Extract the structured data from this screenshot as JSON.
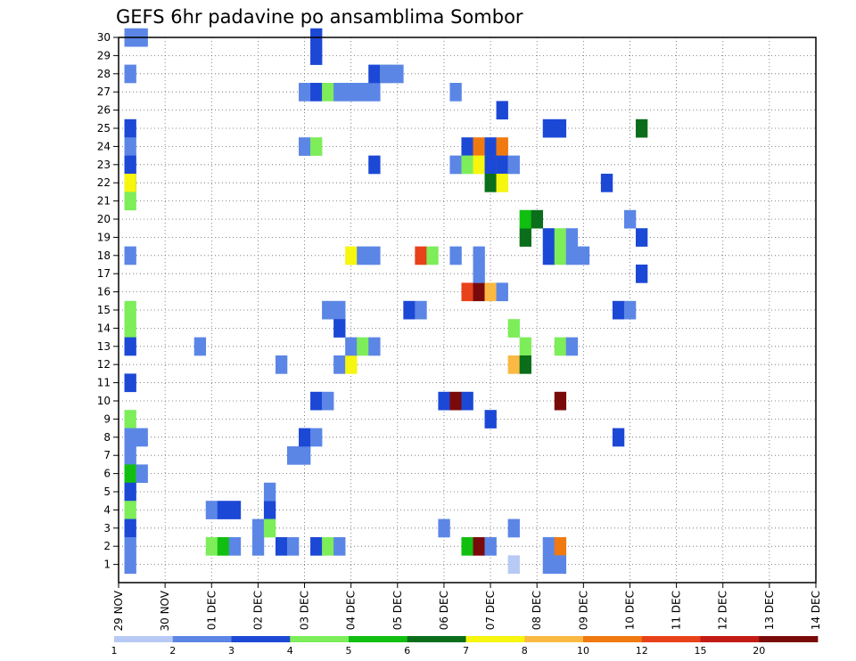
{
  "chart_data": {
    "type": "heatmap",
    "title": "GEFS 6hr padavine po ansamblima Sombor",
    "xlabel": "",
    "ylabel": "",
    "x_ticks": [
      "29 NOV",
      "30 NOV",
      "01 DEC",
      "02 DEC",
      "03 DEC",
      "04 DEC",
      "05 DEC",
      "06 DEC",
      "07 DEC",
      "08 DEC",
      "09 DEC",
      "10 DEC",
      "11 DEC",
      "12 DEC",
      "13 DEC",
      "14 DEC"
    ],
    "x_range": [
      0,
      60
    ],
    "y_ticks": [
      "1",
      "2",
      "3",
      "4",
      "5",
      "6",
      "7",
      "8",
      "9",
      "10",
      "11",
      "12",
      "13",
      "14",
      "15",
      "16",
      "17",
      "18",
      "19",
      "20",
      "21",
      "22",
      "23",
      "24",
      "25",
      "26",
      "27",
      "28",
      "29",
      "30"
    ],
    "y_range": [
      0,
      30
    ],
    "grid": true,
    "x_unit": "6-hour step",
    "y_unit": "ensemble member",
    "levels": [
      "1",
      "2",
      "3",
      "4",
      "5",
      "6",
      "7",
      "8",
      "10",
      "12",
      "15",
      "20"
    ],
    "colors": [
      "#b7c9f5",
      "#5b86e6",
      "#1c48d6",
      "#7ded5a",
      "#10bf10",
      "#0a6e1b",
      "#f6f60e",
      "#fbb943",
      "#f07a10",
      "#e8421a",
      "#c21b14",
      "#7a0a0a"
    ],
    "cells": [
      [
        1,
        1,
        30
      ],
      [
        1,
        2,
        22
      ],
      [
        1,
        1,
        28
      ],
      [
        1,
        2,
        25
      ],
      [
        1,
        1,
        24
      ],
      [
        1,
        2,
        23
      ],
      [
        1,
        6,
        22
      ],
      [
        1,
        3,
        21
      ],
      [
        1,
        1,
        18
      ],
      [
        1,
        3,
        15
      ],
      [
        1,
        3,
        14
      ],
      [
        1,
        2,
        13
      ],
      [
        1,
        2,
        11
      ],
      [
        1,
        3,
        9
      ],
      [
        1,
        1,
        8
      ],
      [
        1,
        1,
        7
      ],
      [
        1,
        4,
        6
      ],
      [
        1,
        2,
        5
      ],
      [
        1,
        3,
        4
      ],
      [
        1,
        2,
        3
      ],
      [
        1,
        1,
        2
      ],
      [
        1,
        1,
        1
      ],
      [
        2,
        1,
        30
      ],
      [
        2,
        1,
        8
      ],
      [
        2,
        1,
        6
      ],
      [
        7,
        1,
        13
      ],
      [
        8,
        3,
        2
      ],
      [
        8,
        1,
        4
      ],
      [
        9,
        4,
        2
      ],
      [
        9,
        2,
        4
      ],
      [
        10,
        1,
        2
      ],
      [
        10,
        2,
        4
      ],
      [
        12,
        1,
        3
      ],
      [
        12,
        1,
        2
      ],
      [
        13,
        2,
        4
      ],
      [
        13,
        3,
        3
      ],
      [
        13,
        1,
        5
      ],
      [
        14,
        2,
        2
      ],
      [
        14,
        1,
        12
      ],
      [
        15,
        1,
        2
      ],
      [
        15,
        1,
        7
      ],
      [
        16,
        1,
        7
      ],
      [
        16,
        2,
        8
      ],
      [
        17,
        1,
        8
      ],
      [
        16,
        1,
        27
      ],
      [
        16,
        1,
        24
      ],
      [
        17,
        2,
        10
      ],
      [
        17,
        2,
        27
      ],
      [
        17,
        3,
        24
      ],
      [
        17,
        2,
        29
      ],
      [
        17,
        2,
        30
      ],
      [
        17,
        2,
        2
      ],
      [
        18,
        1,
        10
      ],
      [
        18,
        3,
        27
      ],
      [
        18,
        3,
        2
      ],
      [
        18,
        1,
        15
      ],
      [
        19,
        1,
        15
      ],
      [
        19,
        2,
        14
      ],
      [
        19,
        1,
        2
      ],
      [
        19,
        1,
        12
      ],
      [
        19,
        1,
        27
      ],
      [
        20,
        6,
        18
      ],
      [
        20,
        6,
        12
      ],
      [
        20,
        1,
        13
      ],
      [
        20,
        1,
        27
      ],
      [
        21,
        1,
        18
      ],
      [
        21,
        3,
        13
      ],
      [
        21,
        1,
        27
      ],
      [
        22,
        1,
        18
      ],
      [
        22,
        1,
        13
      ],
      [
        22,
        1,
        27
      ],
      [
        22,
        2,
        23
      ],
      [
        22,
        2,
        28
      ],
      [
        23,
        3,
        28
      ],
      [
        23,
        1,
        28
      ],
      [
        24,
        1,
        28
      ],
      [
        26,
        9,
        18
      ],
      [
        27,
        3,
        18
      ],
      [
        25,
        2,
        15
      ],
      [
        26,
        1,
        15
      ],
      [
        28,
        1,
        3
      ],
      [
        28,
        2,
        10
      ],
      [
        29,
        11,
        10
      ],
      [
        29,
        1,
        27
      ],
      [
        29,
        1,
        18
      ],
      [
        29,
        1,
        23
      ],
      [
        30,
        9,
        16
      ],
      [
        30,
        2,
        24
      ],
      [
        30,
        3,
        23
      ],
      [
        30,
        4,
        2
      ],
      [
        30,
        2,
        10
      ],
      [
        31,
        11,
        16
      ],
      [
        31,
        8,
        24
      ],
      [
        31,
        6,
        23
      ],
      [
        31,
        11,
        2
      ],
      [
        31,
        1,
        17
      ],
      [
        31,
        1,
        18
      ],
      [
        32,
        7,
        16
      ],
      [
        32,
        2,
        24
      ],
      [
        32,
        2,
        23
      ],
      [
        32,
        5,
        22
      ],
      [
        32,
        1,
        2
      ],
      [
        32,
        2,
        9
      ],
      [
        33,
        1,
        16
      ],
      [
        33,
        8,
        24
      ],
      [
        33,
        2,
        23
      ],
      [
        33,
        6,
        22
      ],
      [
        33,
        2,
        26
      ],
      [
        34,
        3,
        14
      ],
      [
        34,
        7,
        12
      ],
      [
        34,
        1,
        23
      ],
      [
        34,
        1,
        3
      ],
      [
        34,
        0,
        1
      ],
      [
        35,
        3,
        13
      ],
      [
        35,
        5,
        12
      ],
      [
        35,
        5,
        19
      ],
      [
        35,
        4,
        20
      ],
      [
        36,
        5,
        20
      ],
      [
        37,
        2,
        25
      ],
      [
        37,
        2,
        18
      ],
      [
        37,
        2,
        19
      ],
      [
        37,
        1,
        2
      ],
      [
        37,
        1,
        1
      ],
      [
        38,
        2,
        25
      ],
      [
        38,
        3,
        18
      ],
      [
        38,
        3,
        19
      ],
      [
        38,
        3,
        13
      ],
      [
        38,
        11,
        10
      ],
      [
        38,
        8,
        2
      ],
      [
        38,
        1,
        1
      ],
      [
        39,
        1,
        18
      ],
      [
        39,
        1,
        19
      ],
      [
        39,
        1,
        13
      ],
      [
        40,
        1,
        18
      ],
      [
        42,
        2,
        22
      ],
      [
        43,
        2,
        15
      ],
      [
        43,
        2,
        8
      ],
      [
        44,
        1,
        15
      ],
      [
        44,
        1,
        20
      ],
      [
        45,
        2,
        19
      ],
      [
        45,
        2,
        17
      ],
      [
        45,
        5,
        25
      ]
    ]
  }
}
